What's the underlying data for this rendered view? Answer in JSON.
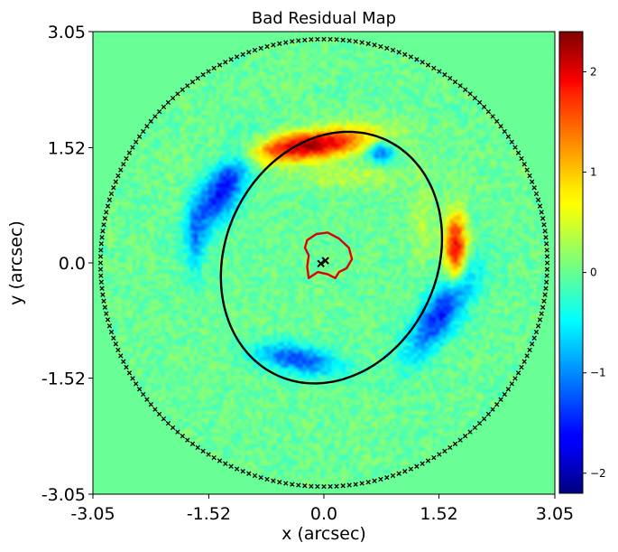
{
  "chart_data": {
    "type": "heatmap",
    "title": "Bad Residual Map",
    "xlabel": "x (arcsec)",
    "ylabel": "y (arcsec)",
    "xlim": [
      -3.05,
      3.05
    ],
    "ylim": [
      -3.05,
      3.05
    ],
    "x_ticks": [
      -3.05,
      -1.52,
      0.0,
      1.52,
      3.05
    ],
    "x_tick_labels": [
      "-3.05",
      "-1.52",
      "0.0",
      "1.52",
      "3.05"
    ],
    "y_ticks": [
      3.05,
      1.52,
      0.0,
      -1.52,
      -3.05
    ],
    "y_tick_labels": [
      "3.05",
      "1.52",
      "0.0",
      "-1.52",
      "-3.05"
    ],
    "colormap": "jet",
    "colorbar": {
      "vmin": -2.2,
      "vmax": 2.4,
      "ticks": [
        2,
        1,
        0,
        -1,
        -2
      ],
      "tick_labels": [
        "2",
        "1",
        "0",
        "−1",
        "−2"
      ]
    },
    "background_value": 0.0,
    "mask_radius_arcsec": 2.95,
    "residual_features": [
      {
        "name": "north-arc",
        "x": -0.18,
        "y": 1.55,
        "sx": 0.55,
        "sy": 0.13,
        "rot_deg": 8,
        "value": 2.2
      },
      {
        "name": "east-arc",
        "x": 1.74,
        "y": 0.2,
        "sx": 0.1,
        "sy": 0.32,
        "rot_deg": 0,
        "value": 1.9
      },
      {
        "name": "northwest-arc",
        "x": -1.35,
        "y": 0.95,
        "sx": 0.17,
        "sy": 0.42,
        "rot_deg": -30,
        "value": -1.6
      },
      {
        "name": "southeast-arc",
        "x": 1.55,
        "y": -0.65,
        "sx": 0.17,
        "sy": 0.48,
        "rot_deg": -35,
        "value": -1.5
      },
      {
        "name": "south-arc",
        "x": -0.35,
        "y": -1.27,
        "sx": 0.38,
        "sy": 0.13,
        "rot_deg": -10,
        "value": -1.3
      },
      {
        "name": "north-knot",
        "x": 0.75,
        "y": 1.45,
        "sx": 0.12,
        "sy": 0.1,
        "rot_deg": 0,
        "value": -1.2
      },
      {
        "name": "west-edge",
        "x": -1.7,
        "y": 0.3,
        "sx": 0.08,
        "sy": 0.35,
        "rot_deg": 0,
        "value": -0.7
      },
      {
        "name": "east-edge",
        "x": 1.3,
        "y": 0.55,
        "sx": 0.1,
        "sy": 0.35,
        "rot_deg": 0,
        "value": 0.35
      },
      {
        "name": "north-inner",
        "x": 0.35,
        "y": 1.15,
        "sx": 0.5,
        "sy": 0.1,
        "rot_deg": 0,
        "value": 0.4
      }
    ],
    "overlays": {
      "critical_curve": {
        "color": "#000000",
        "center": [
          0.1,
          0.07
        ],
        "semi_major": 1.71,
        "semi_minor": 1.4,
        "angle_deg": 65
      },
      "caustic": {
        "color": "#e00000",
        "points": [
          [
            -0.22,
            0.3
          ],
          [
            -0.1,
            0.38
          ],
          [
            0.05,
            0.4
          ],
          [
            0.2,
            0.32
          ],
          [
            0.33,
            0.2
          ],
          [
            0.37,
            0.05
          ],
          [
            0.3,
            -0.07
          ],
          [
            0.2,
            -0.12
          ],
          [
            0.15,
            -0.2
          ],
          [
            0.05,
            -0.15
          ],
          [
            -0.08,
            -0.12
          ],
          [
            -0.2,
            -0.2
          ],
          [
            -0.22,
            -0.05
          ],
          [
            -0.2,
            0.1
          ],
          [
            -0.25,
            0.2
          ],
          [
            -0.22,
            0.3
          ]
        ]
      },
      "source_positions": [
        [
          0.02,
          0.03
        ],
        [
          -0.04,
          -0.01
        ]
      ],
      "mask_boundary": {
        "radius": 2.95,
        "color": "#000000"
      }
    }
  }
}
